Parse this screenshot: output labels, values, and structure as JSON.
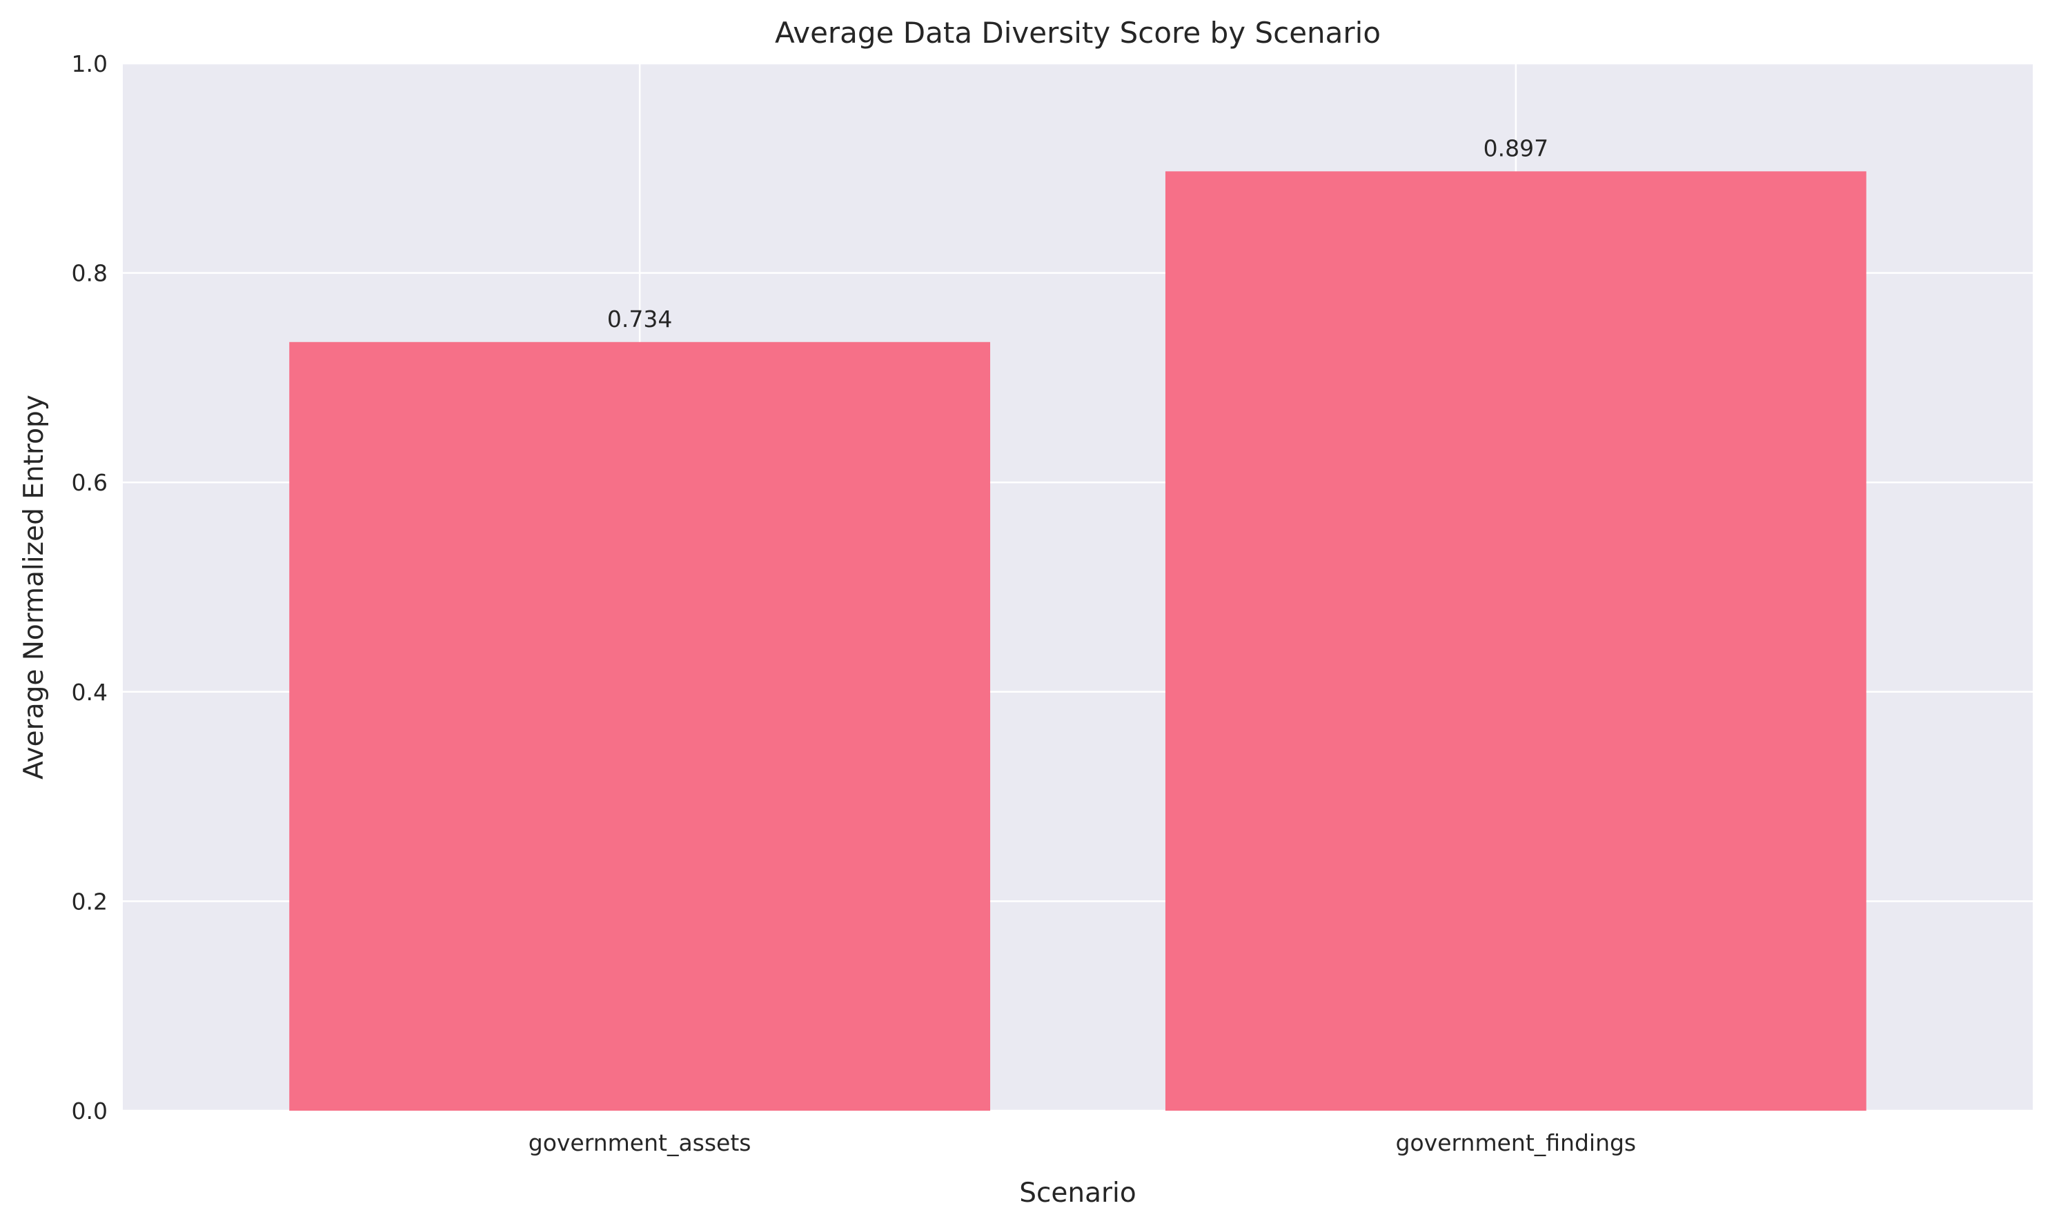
{
  "chart_data": {
    "type": "bar",
    "title": "Average Data Diversity Score by Scenario",
    "xlabel": "Scenario",
    "ylabel": "Average Normalized Entropy",
    "categories": [
      "government_assets",
      "government_findings"
    ],
    "values": [
      0.734,
      0.897
    ],
    "data_labels": [
      "0.734",
      "0.897"
    ],
    "ylim": [
      0,
      1.0
    ],
    "yticks": [
      0.0,
      0.2,
      0.4,
      0.6,
      0.8,
      1.0
    ],
    "ytick_labels": [
      "0.0",
      "0.2",
      "0.4",
      "0.6",
      "0.8",
      "1.0"
    ],
    "grid": true,
    "colors": {
      "bar": "#f67088",
      "plot_background": "#eaeaf2",
      "grid": "#ffffff",
      "text": "#262626"
    }
  }
}
